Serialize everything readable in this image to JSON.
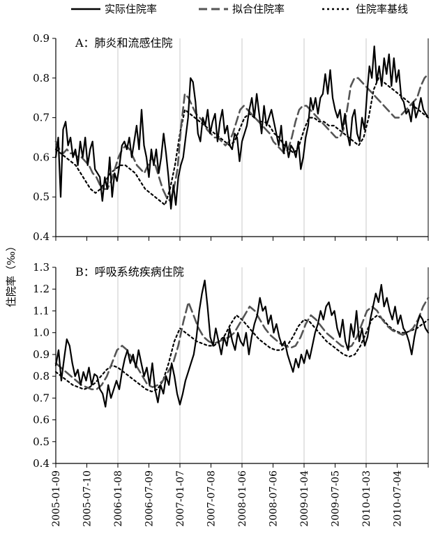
{
  "legend": {
    "actual": "实际住院率",
    "fitted": "拟合住院率",
    "baseline": "住院率基线"
  },
  "ylabel": "住院率（‰）",
  "x_tick_labels": [
    "2005-01-09",
    "2005-07-10",
    "2006-01-08",
    "2006-07-09",
    "2007-01-07",
    "2007-07-08",
    "2008-01-06",
    "2008-07-06",
    "2009-01-04",
    "2009-07-05",
    "2010-01-03",
    "2010-07-04"
  ],
  "chart_data": [
    {
      "type": "line",
      "title": "A：肺炎和流感住院",
      "ylim": [
        0.4,
        0.9
      ],
      "y_ticks": [
        "0.4",
        "0.5",
        "0.6",
        "0.7",
        "0.8",
        "0.9"
      ],
      "series": [
        {
          "name": "实际住院率",
          "style": "solid",
          "values": [
            0.6,
            0.65,
            0.5,
            0.67,
            0.69,
            0.63,
            0.65,
            0.6,
            0.62,
            0.58,
            0.64,
            0.6,
            0.65,
            0.58,
            0.62,
            0.64,
            0.57,
            0.56,
            0.55,
            0.49,
            0.55,
            0.52,
            0.6,
            0.5,
            0.56,
            0.54,
            0.58,
            0.63,
            0.64,
            0.62,
            0.65,
            0.6,
            0.64,
            0.68,
            0.62,
            0.72,
            0.63,
            0.6,
            0.55,
            0.62,
            0.58,
            0.62,
            0.56,
            0.6,
            0.66,
            0.61,
            0.55,
            0.47,
            0.53,
            0.48,
            0.55,
            0.58,
            0.6,
            0.65,
            0.7,
            0.8,
            0.79,
            0.74,
            0.66,
            0.64,
            0.7,
            0.68,
            0.72,
            0.66,
            0.69,
            0.71,
            0.64,
            0.69,
            0.72,
            0.66,
            0.68,
            0.63,
            0.62,
            0.66,
            0.65,
            0.59,
            0.64,
            0.66,
            0.68,
            0.72,
            0.75,
            0.7,
            0.76,
            0.71,
            0.66,
            0.73,
            0.68,
            0.7,
            0.72,
            0.69,
            0.66,
            0.63,
            0.68,
            0.61,
            0.64,
            0.6,
            0.63,
            0.62,
            0.6,
            0.64,
            0.57,
            0.6,
            0.65,
            0.68,
            0.75,
            0.72,
            0.75,
            0.71,
            0.75,
            0.76,
            0.81,
            0.76,
            0.82,
            0.75,
            0.72,
            0.7,
            0.72,
            0.67,
            0.71,
            0.66,
            0.63,
            0.7,
            0.72,
            0.66,
            0.64,
            0.7,
            0.67,
            0.76,
            0.83,
            0.8,
            0.88,
            0.79,
            0.83,
            0.78,
            0.85,
            0.81,
            0.86,
            0.78,
            0.85,
            0.79,
            0.82,
            0.75,
            0.74,
            0.71,
            0.72,
            0.69,
            0.74,
            0.7,
            0.72,
            0.75,
            0.72,
            0.71,
            0.7
          ]
        },
        {
          "name": "拟合住院率",
          "style": "dashed",
          "values": [
            0.64,
            0.62,
            0.61,
            0.62,
            0.61,
            0.61,
            0.6,
            0.6,
            0.59,
            0.58,
            0.56,
            0.55,
            0.53,
            0.52,
            0.52,
            0.54,
            0.57,
            0.6,
            0.62,
            0.63,
            0.62,
            0.6,
            0.58,
            0.57,
            0.56,
            0.58,
            0.6,
            0.58,
            0.55,
            0.52,
            0.5,
            0.49,
            0.52,
            0.57,
            0.68,
            0.76,
            0.75,
            0.73,
            0.71,
            0.7,
            0.69,
            0.67,
            0.66,
            0.65,
            0.65,
            0.64,
            0.63,
            0.64,
            0.66,
            0.69,
            0.72,
            0.73,
            0.72,
            0.71,
            0.7,
            0.69,
            0.68,
            0.67,
            0.66,
            0.64,
            0.63,
            0.62,
            0.61,
            0.62,
            0.65,
            0.69,
            0.72,
            0.73,
            0.73,
            0.72,
            0.71,
            0.7,
            0.69,
            0.68,
            0.67,
            0.66,
            0.65,
            0.65,
            0.67,
            0.72,
            0.78,
            0.8,
            0.8,
            0.79,
            0.78,
            0.77,
            0.76,
            0.75,
            0.74,
            0.73,
            0.72,
            0.71,
            0.7,
            0.7,
            0.71,
            0.72,
            0.73,
            0.74,
            0.75,
            0.78,
            0.8,
            0.81
          ]
        },
        {
          "name": "住院率基线",
          "style": "dotted",
          "values": [
            0.62,
            0.61,
            0.6,
            0.59,
            0.58,
            0.56,
            0.54,
            0.52,
            0.51,
            0.52,
            0.54,
            0.56,
            0.57,
            0.58,
            0.58,
            0.57,
            0.56,
            0.54,
            0.52,
            0.51,
            0.5,
            0.49,
            0.48,
            0.52,
            0.58,
            0.66,
            0.72,
            0.71,
            0.7,
            0.69,
            0.68,
            0.67,
            0.66,
            0.65,
            0.64,
            0.63,
            0.64,
            0.67,
            0.7,
            0.71,
            0.7,
            0.69,
            0.69,
            0.68,
            0.66,
            0.65,
            0.63,
            0.62,
            0.61,
            0.63,
            0.67,
            0.7,
            0.7,
            0.69,
            0.69,
            0.68,
            0.68,
            0.67,
            0.66,
            0.65,
            0.64,
            0.63,
            0.65,
            0.7,
            0.77,
            0.8,
            0.79,
            0.78,
            0.77,
            0.76,
            0.75,
            0.74,
            0.73,
            0.72,
            0.71,
            0.7
          ]
        }
      ]
    },
    {
      "type": "line",
      "title": "B：呼吸系统疾病住院",
      "ylim": [
        0.4,
        1.3
      ],
      "y_ticks": [
        "0.4",
        "0.5",
        "0.6",
        "0.7",
        "0.8",
        "0.9",
        "1.0",
        "1.1",
        "1.2",
        "1.3"
      ],
      "series": [
        {
          "name": "实际住院率",
          "style": "solid",
          "values": [
            0.85,
            0.92,
            0.78,
            0.88,
            0.97,
            0.94,
            0.86,
            0.8,
            0.83,
            0.76,
            0.82,
            0.78,
            0.84,
            0.76,
            0.81,
            0.8,
            0.74,
            0.72,
            0.66,
            0.76,
            0.7,
            0.74,
            0.78,
            0.74,
            0.82,
            0.88,
            0.92,
            0.86,
            0.9,
            0.84,
            0.92,
            0.86,
            0.8,
            0.84,
            0.76,
            0.86,
            0.74,
            0.68,
            0.76,
            0.72,
            0.8,
            0.76,
            0.86,
            0.8,
            0.72,
            0.67,
            0.72,
            0.78,
            0.82,
            0.86,
            0.9,
            0.98,
            1.1,
            1.18,
            1.24,
            1.12,
            0.98,
            0.94,
            1.02,
            0.96,
            0.9,
            0.98,
            0.94,
            1.02,
            0.96,
            0.92,
            1.0,
            0.96,
            0.94,
            1.0,
            0.9,
            0.98,
            1.04,
            1.08,
            1.16,
            1.1,
            1.12,
            1.04,
            1.08,
            1.0,
            1.04,
            0.98,
            0.94,
            0.96,
            0.9,
            0.86,
            0.82,
            0.88,
            0.84,
            0.9,
            0.86,
            0.92,
            0.88,
            0.94,
            1.0,
            1.04,
            1.1,
            1.06,
            1.12,
            1.14,
            1.08,
            1.1,
            1.02,
            0.98,
            1.06,
            0.96,
            0.92,
            1.04,
            0.98,
            1.1,
            0.96,
            1.02,
            0.94,
            0.98,
            1.06,
            1.12,
            1.18,
            1.14,
            1.22,
            1.12,
            1.16,
            1.1,
            1.06,
            1.12,
            1.04,
            1.08,
            1.02,
            1.0,
            0.96,
            0.9,
            0.98,
            1.04,
            1.08,
            1.06,
            1.02,
            1.0
          ]
        },
        {
          "name": "拟合住院率",
          "style": "dashed",
          "values": [
            0.86,
            0.84,
            0.82,
            0.8,
            0.78,
            0.76,
            0.75,
            0.74,
            0.74,
            0.76,
            0.8,
            0.86,
            0.92,
            0.94,
            0.92,
            0.88,
            0.84,
            0.8,
            0.76,
            0.75,
            0.76,
            0.78,
            0.82,
            0.86,
            0.94,
            1.05,
            1.14,
            1.08,
            1.02,
            0.98,
            0.96,
            0.95,
            0.96,
            0.97,
            0.98,
            1.0,
            1.04,
            1.08,
            1.12,
            1.1,
            1.06,
            1.02,
            0.99,
            0.97,
            0.95,
            0.94,
            0.93,
            0.94,
            0.98,
            1.04,
            1.08,
            1.06,
            1.03,
            1.0,
            0.98,
            0.96,
            0.94,
            0.93,
            0.94,
            0.98,
            1.04,
            1.1,
            1.12,
            1.1,
            1.06,
            1.03,
            1.01,
            1.0,
            0.99,
            1.0,
            1.02,
            1.06,
            1.12,
            1.16
          ]
        },
        {
          "name": "住院率基线",
          "style": "dotted",
          "values": [
            0.82,
            0.8,
            0.78,
            0.76,
            0.75,
            0.74,
            0.75,
            0.77,
            0.8,
            0.83,
            0.85,
            0.84,
            0.82,
            0.8,
            0.78,
            0.76,
            0.74,
            0.73,
            0.74,
            0.78,
            0.86,
            0.96,
            1.02,
            1.0,
            0.98,
            0.96,
            0.95,
            0.94,
            0.94,
            0.96,
            0.99,
            1.04,
            1.08,
            1.06,
            1.03,
            1.0,
            0.97,
            0.95,
            0.93,
            0.92,
            0.92,
            0.94,
            0.98,
            1.03,
            1.06,
            1.05,
            1.02,
            0.99,
            0.96,
            0.94,
            0.92,
            0.9,
            0.89,
            0.9,
            0.94,
            1.0,
            1.06,
            1.08,
            1.06,
            1.03,
            1.01,
            1.0,
            1.0,
            1.01,
            1.02,
            1.04,
            1.06
          ]
        }
      ]
    }
  ]
}
